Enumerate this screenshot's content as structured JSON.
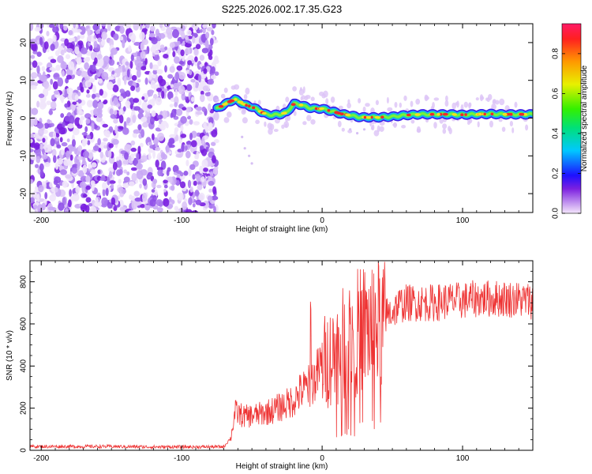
{
  "title": "S225.2026.002.17.35.G23",
  "colors": {
    "snr_line": "#ee3333",
    "spec_dot_dark": "#7a1fe0",
    "spec_dot_light": "#c9a8f5",
    "axis": "#000000"
  },
  "chart_data": [
    {
      "type": "heatmap",
      "title": "",
      "xlabel": "Height of straight line (km)",
      "ylabel": "Frequency (Hz)",
      "xlim": [
        -208,
        150
      ],
      "ylim": [
        -25,
        25
      ],
      "xticks": [
        -200,
        -100,
        0,
        100
      ],
      "xtick_labels": [
        "-200",
        "-100",
        "0",
        "100"
      ],
      "yticks": [
        -20,
        -10,
        0,
        10,
        20
      ],
      "ytick_labels": [
        "-20",
        "-10",
        "0",
        "10",
        "20"
      ],
      "noise_region_x": [
        -208,
        -75
      ],
      "signal_track": {
        "x": [
          -75,
          -70,
          -65,
          -62,
          -58,
          -55,
          -50,
          -45,
          -40,
          -35,
          -30,
          -25,
          -22,
          -20,
          -15,
          -10,
          -5,
          0,
          5,
          10,
          15,
          20,
          25,
          30,
          40,
          50,
          60,
          70,
          80,
          90,
          100,
          110,
          120,
          130,
          140,
          150
        ],
        "freq_hz": [
          2.5,
          3.5,
          4.5,
          5.0,
          4.2,
          3.5,
          3.0,
          2.0,
          1.0,
          0.8,
          1.0,
          1.5,
          3.0,
          3.8,
          3.5,
          2.8,
          2.5,
          2.5,
          2.0,
          1.5,
          1.0,
          0.8,
          0.3,
          0.2,
          0.2,
          0.4,
          0.8,
          1.0,
          1.0,
          1.0,
          0.9,
          1.0,
          1.1,
          1.0,
          1.0,
          1.0
        ]
      },
      "colorbar": {
        "label": "Normalized spectral amplitude",
        "range": [
          0,
          0.95
        ],
        "ticks": [
          0.0,
          0.2,
          0.4,
          0.6,
          0.8
        ],
        "tick_labels": [
          "0.0",
          "0.2",
          "0.4",
          "0.6",
          "0.8"
        ]
      }
    },
    {
      "type": "line",
      "title": "",
      "xlabel": "Height of straight line (km)",
      "ylabel": "SNR (10 * v/v)",
      "xlim": [
        -208,
        150
      ],
      "ylim": [
        0,
        900
      ],
      "xticks": [
        -200,
        -100,
        0,
        100
      ],
      "xtick_labels": [
        "-200",
        "-100",
        "0",
        "100"
      ],
      "yticks": [
        0,
        200,
        400,
        600,
        800
      ],
      "ytick_labels": [
        "0",
        "200",
        "400",
        "600",
        "800"
      ],
      "series": [
        {
          "name": "SNR",
          "x": [
            -208,
            -180,
            -150,
            -120,
            -90,
            -70,
            -65,
            -62,
            -55,
            -45,
            -35,
            -25,
            -20,
            -15,
            -10,
            -5,
            0,
            5,
            10,
            15,
            20,
            25,
            30,
            35,
            40,
            43,
            45,
            50,
            55,
            60,
            70,
            80,
            90,
            100,
            110,
            120,
            130,
            140,
            150
          ],
          "values": [
            18,
            18,
            18,
            16,
            16,
            17,
            60,
            180,
            160,
            170,
            190,
            220,
            240,
            280,
            300,
            340,
            410,
            440,
            470,
            500,
            540,
            560,
            580,
            590,
            600,
            610,
            640,
            660,
            690,
            700,
            700,
            700,
            710,
            710,
            720,
            720,
            720,
            715,
            710
          ]
        }
      ]
    }
  ]
}
